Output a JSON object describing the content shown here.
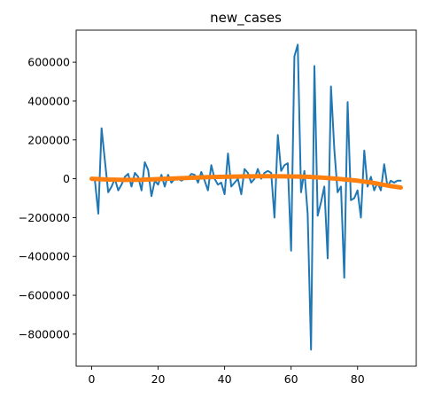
{
  "chart_data": {
    "type": "line",
    "title": "new_cases",
    "xlabel": "",
    "ylabel": "",
    "xlim": [
      -4.65,
      97.65
    ],
    "ylim": [
      -965000,
      765000
    ],
    "grid": false,
    "legend": "none",
    "x_ticks": [
      0,
      20,
      40,
      60,
      80
    ],
    "x_tick_labels": [
      "0",
      "20",
      "40",
      "60",
      "80"
    ],
    "y_ticks": [
      600000,
      400000,
      200000,
      0,
      -200000,
      -400000,
      -600000,
      -800000
    ],
    "y_tick_labels": [
      "600000",
      "400000",
      "200000",
      "0",
      "−200000",
      "−400000",
      "−600000",
      "−800000"
    ],
    "series": [
      {
        "color": "#1f77b4",
        "x": [
          0,
          1,
          2,
          3,
          4,
          5,
          6,
          7,
          8,
          9,
          10,
          11,
          12,
          13,
          14,
          15,
          16,
          17,
          18,
          19,
          20,
          21,
          22,
          23,
          24,
          25,
          26,
          27,
          28,
          29,
          30,
          31,
          32,
          33,
          34,
          35,
          36,
          37,
          38,
          39,
          40,
          41,
          42,
          43,
          44,
          45,
          46,
          47,
          48,
          49,
          50,
          51,
          52,
          53,
          54,
          55,
          56,
          57,
          58,
          59,
          60,
          61,
          62,
          63,
          64,
          65,
          66,
          67,
          68,
          69,
          70,
          71,
          72,
          73,
          74,
          75,
          76,
          77,
          78,
          79,
          80,
          81,
          82,
          83,
          84,
          85,
          86,
          87,
          88,
          89,
          90,
          91,
          92,
          93
        ],
        "y": [
          0,
          -10000,
          -180000,
          260000,
          90000,
          -70000,
          -40000,
          0,
          -60000,
          -30000,
          10000,
          25000,
          -40000,
          30000,
          10000,
          -60000,
          85000,
          45000,
          -90000,
          -10000,
          -30000,
          20000,
          -40000,
          20000,
          -20000,
          0,
          0,
          -10000,
          0,
          5000,
          25000,
          20000,
          -20000,
          35000,
          -10000,
          -60000,
          70000,
          0,
          -30000,
          -20000,
          -80000,
          130000,
          -40000,
          -20000,
          0,
          -80000,
          50000,
          30000,
          -20000,
          0,
          50000,
          0,
          30000,
          40000,
          30000,
          -200000,
          225000,
          40000,
          70000,
          80000,
          -370000,
          630000,
          690000,
          -70000,
          40000,
          -180000,
          -880000,
          580000,
          -190000,
          -120000,
          -40000,
          -410000,
          475000,
          150000,
          -70000,
          -40000,
          -510000,
          395000,
          -110000,
          -100000,
          -60000,
          -200000,
          145000,
          -40000,
          10000,
          -60000,
          -20000,
          -60000,
          75000,
          -40000,
          -10000,
          -20000,
          -10000,
          -10000
        ]
      },
      {
        "color": "#ff7f0e",
        "x": [
          0,
          5,
          10,
          15,
          20,
          25,
          30,
          35,
          40,
          45,
          50,
          55,
          60,
          65,
          70,
          75,
          80,
          85,
          90,
          93
        ],
        "y": [
          0,
          -4000,
          -6000,
          -5000,
          -2000,
          2000,
          5000,
          8000,
          10000,
          12000,
          13000,
          13000,
          12000,
          10000,
          5000,
          -2000,
          -10000,
          -22000,
          -38000,
          -45000
        ]
      }
    ]
  }
}
